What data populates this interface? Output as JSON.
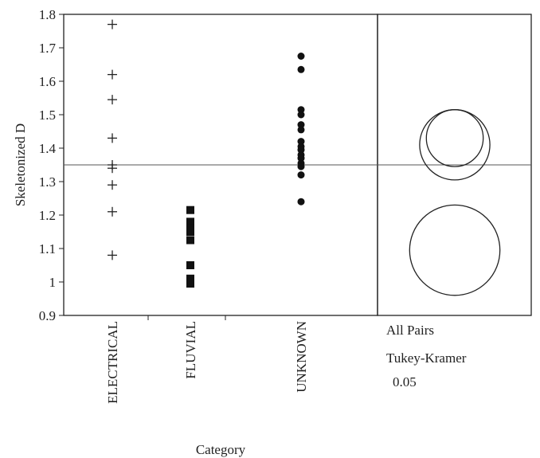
{
  "chart_data": {
    "type": "scatter",
    "xlabel": "Category",
    "ylabel": "Skeletonized D",
    "ylim": [
      0.9,
      1.8
    ],
    "yticks": [
      "0.9",
      "1",
      "1.1",
      "1.2",
      "1.3",
      "1.4",
      "1.5",
      "1.6",
      "1.7",
      "1.8"
    ],
    "categories": [
      "ELECTRICAL",
      "FLUVIAL",
      "UNKNOWN"
    ],
    "grand_mean": 1.35,
    "series": [
      {
        "category": "ELECTRICAL",
        "marker": "plus",
        "values": [
          1.77,
          1.62,
          1.545,
          1.43,
          1.35,
          1.34,
          1.29,
          1.21,
          1.08
        ]
      },
      {
        "category": "FLUVIAL",
        "marker": "square",
        "values": [
          1.215,
          1.18,
          1.16,
          1.15,
          1.125,
          1.05,
          1.01,
          0.995
        ]
      },
      {
        "category": "UNKNOWN",
        "marker": "dot",
        "values": [
          1.675,
          1.635,
          1.515,
          1.5,
          1.47,
          1.455,
          1.42,
          1.405,
          1.395,
          1.38,
          1.37,
          1.355,
          1.345,
          1.32,
          1.24
        ]
      }
    ],
    "comparison_circles": {
      "labels": [
        "All Pairs",
        "Tukey-Kramer",
        "0.05"
      ],
      "circles": [
        {
          "center": 1.43,
          "radius": 0.085
        },
        {
          "center": 1.41,
          "radius": 0.105
        },
        {
          "center": 1.095,
          "radius": 0.135
        }
      ]
    }
  }
}
